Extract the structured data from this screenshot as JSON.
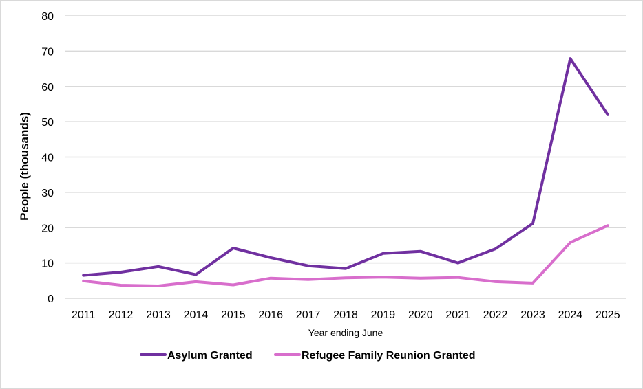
{
  "chart_data": {
    "type": "line",
    "title": "",
    "xlabel": "Year ending June",
    "ylabel": "People (thousands)",
    "ylim": [
      0,
      80
    ],
    "yticks": [
      0,
      10,
      20,
      30,
      40,
      50,
      60,
      70,
      80
    ],
    "grid": true,
    "legend_position": "bottom",
    "categories": [
      "2011",
      "2012",
      "2013",
      "2014",
      "2015",
      "2016",
      "2017",
      "2018",
      "2019",
      "2020",
      "2021",
      "2022",
      "2023",
      "2024",
      "2025"
    ],
    "series": [
      {
        "name": "Asylum Granted",
        "color": "#7030a0",
        "values": [
          6.5,
          7.4,
          9.0,
          6.7,
          14.2,
          11.5,
          9.2,
          8.4,
          12.7,
          13.3,
          10.0,
          14.0,
          21.2,
          67.9,
          52.0
        ]
      },
      {
        "name": "Refugee Family Reunion Granted",
        "color": "#d86ecc",
        "values": [
          4.9,
          3.7,
          3.5,
          4.7,
          3.8,
          5.7,
          5.3,
          5.8,
          6.0,
          5.7,
          5.9,
          4.7,
          4.3,
          15.8,
          20.6
        ]
      }
    ]
  }
}
